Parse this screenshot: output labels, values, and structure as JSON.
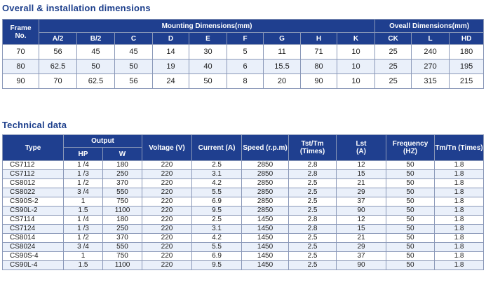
{
  "dimensions": {
    "title": "Overall & installation dimensions",
    "frame_header": "Frame No.",
    "group_mounting": "Mounting Dimensions(mm)",
    "group_overall": "Oveall Dimensions(mm)",
    "columns": [
      "A/2",
      "B/2",
      "C",
      "D",
      "E",
      "F",
      "G",
      "H",
      "K",
      "CK",
      "L",
      "HD"
    ],
    "rows": [
      [
        "70",
        "56",
        "45",
        "45",
        "14",
        "30",
        "5",
        "11",
        "71",
        "10",
        "25",
        "240",
        "180"
      ],
      [
        "80",
        "62.5",
        "50",
        "50",
        "19",
        "40",
        "6",
        "15.5",
        "80",
        "10",
        "25",
        "270",
        "195"
      ],
      [
        "90",
        "70",
        "62.5",
        "56",
        "24",
        "50",
        "8",
        "20",
        "90",
        "10",
        "25",
        "315",
        "215"
      ]
    ]
  },
  "technical": {
    "title": "Technical data",
    "col_type": "Type",
    "group_output": "Output",
    "col_hp": "HP",
    "col_w": "W",
    "col_voltage": "Voltage (V)",
    "col_current": "Current (A)",
    "col_speed": "Speed (r.p.m)",
    "col_tst": "Tst/Tm (Times)",
    "col_lst": "Lst (A)",
    "col_freq": "Frequency (HZ)",
    "col_tmtn": "Tm/Tn (Times)",
    "rows": [
      [
        "CS7112",
        "1 /4",
        "180",
        "220",
        "2.5",
        "2850",
        "2.8",
        "12",
        "50",
        "1.8"
      ],
      [
        "CS7112",
        "1 /3",
        "250",
        "220",
        "3.1",
        "2850",
        "2.8",
        "15",
        "50",
        "1.8"
      ],
      [
        "CS8012",
        "1 /2",
        "370",
        "220",
        "4.2",
        "2850",
        "2.5",
        "21",
        "50",
        "1.8"
      ],
      [
        "CS8022",
        "3 /4",
        "550",
        "220",
        "5.5",
        "2850",
        "2.5",
        "29",
        "50",
        "1.8"
      ],
      [
        "CS90S-2",
        "1",
        "750",
        "220",
        "6.9",
        "2850",
        "2.5",
        "37",
        "50",
        "1.8"
      ],
      [
        "CS90L-2",
        "1.5",
        "1100",
        "220",
        "9.5",
        "2850",
        "2.5",
        "90",
        "50",
        "1.8"
      ],
      [
        "CS7114",
        "1 /4",
        "180",
        "220",
        "2.5",
        "1450",
        "2.8",
        "12",
        "50",
        "1.8"
      ],
      [
        "CS7124",
        "1 /3",
        "250",
        "220",
        "3.1",
        "1450",
        "2.8",
        "15",
        "50",
        "1.8"
      ],
      [
        "CS8014",
        "1 /2",
        "370",
        "220",
        "4.2",
        "1450",
        "2.5",
        "21",
        "50",
        "1.8"
      ],
      [
        "CS8024",
        "3 /4",
        "550",
        "220",
        "5.5",
        "1450",
        "2.5",
        "29",
        "50",
        "1.8"
      ],
      [
        "CS90S-4",
        "1",
        "750",
        "220",
        "6.9",
        "1450",
        "2.5",
        "37",
        "50",
        "1.8"
      ],
      [
        "CS90L-4",
        "1.5",
        "1100",
        "220",
        "9.5",
        "1450",
        "2.5",
        "90",
        "50",
        "1.8"
      ]
    ]
  }
}
